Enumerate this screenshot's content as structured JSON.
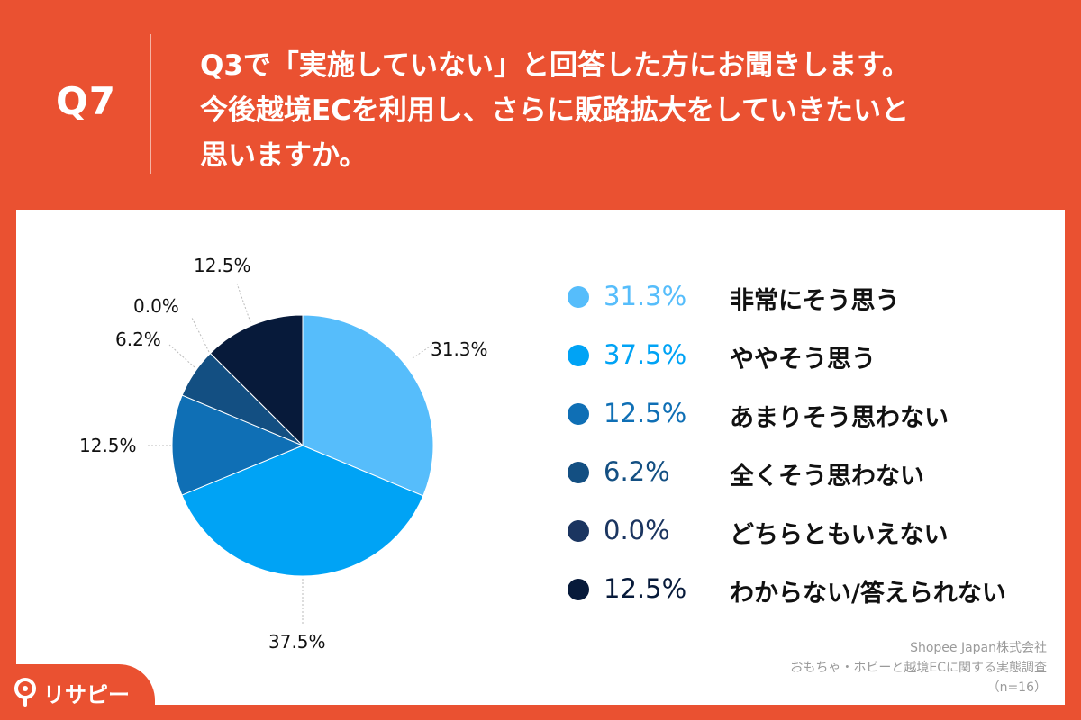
{
  "header": {
    "qnum": "Q7",
    "question_lines": [
      "Q3で「実施していない」と回答した方にお聞きします。",
      "今後越境ECを利用し、さらに販路拡大をしていきたいと",
      "思いますか。"
    ]
  },
  "colors": {
    "brand_orange": "#ea5131",
    "slices": [
      "#56bdfb",
      "#00a3f5",
      "#0f6fb5",
      "#134f82",
      "#1b3560",
      "#071a3a"
    ]
  },
  "chart_data": {
    "type": "pie",
    "categories": [
      "非常にそう思う",
      "ややそう思う",
      "あまりそう思わない",
      "全くそう思わない",
      "どちらともいえない",
      "わからない/答えられない"
    ],
    "values": [
      31.3,
      37.5,
      12.5,
      6.2,
      0.0,
      12.5
    ],
    "value_labels": [
      "31.3%",
      "37.5%",
      "12.5%",
      "6.2%",
      "0.0%",
      "12.5%"
    ],
    "legend_position": "right"
  },
  "source": {
    "company": "Shopee Japan株式会社",
    "survey": "おもちゃ・ホビーと越境ECに関する実態調査",
    "n": "（n=16）"
  },
  "brand": {
    "name": "リサピー",
    "icon": "pin-icon"
  }
}
